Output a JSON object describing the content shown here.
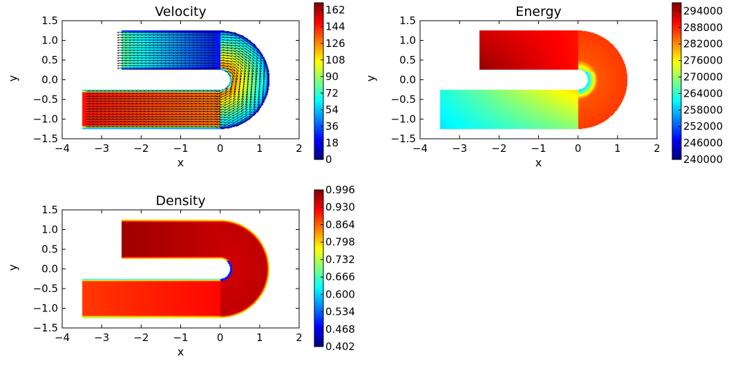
{
  "colors": {
    "jet": [
      "#00007f",
      "#0000ff",
      "#007fff",
      "#00ffff",
      "#7fff7f",
      "#ffff00",
      "#ff7f00",
      "#ff0000",
      "#7f0000"
    ],
    "arrow": "#111111"
  },
  "chart_data": [
    {
      "type": "heatmap",
      "title": "Velocity",
      "xlabel": "x",
      "ylabel": "y",
      "xlim": [
        -4,
        2
      ],
      "ylim": [
        -1.5,
        1.5
      ],
      "xticks": [
        -4,
        -3,
        -2,
        -1,
        0,
        1,
        2
      ],
      "yticks": [
        -1.5,
        -1.0,
        -0.5,
        0.0,
        0.5,
        1.0,
        1.5
      ],
      "xtick_labels": [
        "−4",
        "−3",
        "−2",
        "−1",
        "0",
        "1",
        "2"
      ],
      "ytick_labels": [
        "−1.5",
        "−1.0",
        "−0.5",
        "0.0",
        "0.5",
        "1.0",
        "1.5"
      ],
      "grid": false,
      "colorbar": {
        "min": 0,
        "max": 170,
        "ticks": [
          0,
          18,
          36,
          54,
          72,
          90,
          108,
          126,
          144,
          162
        ],
        "labels": [
          "0",
          "18",
          "36",
          "54",
          "72",
          "90",
          "108",
          "126",
          "144",
          "162"
        ]
      },
      "domain": {
        "inner_radius": 0.25,
        "outer_radius": 1.25,
        "upper_x_start": -2.5,
        "lower_x_start": -3.5
      },
      "quiver": true
    },
    {
      "type": "heatmap",
      "title": "Energy",
      "xlabel": "x",
      "ylabel": "y",
      "xlim": [
        -4,
        2
      ],
      "ylim": [
        -1.5,
        1.5
      ],
      "xticks": [
        -4,
        -3,
        -2,
        -1,
        0,
        1,
        2
      ],
      "yticks": [
        -1.5,
        -1.0,
        -0.5,
        0.0,
        0.5,
        1.0,
        1.5
      ],
      "xtick_labels": [
        "−4",
        "−3",
        "−2",
        "−1",
        "0",
        "1",
        "2"
      ],
      "ytick_labels": [
        "−1.5",
        "−1.0",
        "−0.5",
        "0.0",
        "0.5",
        "1.0",
        "1.5"
      ],
      "grid": false,
      "colorbar": {
        "min": 240000,
        "max": 297000,
        "ticks": [
          240000,
          246000,
          252000,
          258000,
          264000,
          270000,
          276000,
          282000,
          288000,
          294000
        ],
        "labels": [
          "240000",
          "246000",
          "252000",
          "258000",
          "264000",
          "270000",
          "276000",
          "282000",
          "288000",
          "294000"
        ]
      },
      "domain": {
        "inner_radius": 0.25,
        "outer_radius": 1.25,
        "upper_x_start": -2.5,
        "lower_x_start": -3.5
      },
      "quiver": false
    },
    {
      "type": "heatmap",
      "title": "Density",
      "xlabel": "x",
      "ylabel": "y",
      "xlim": [
        -4,
        2
      ],
      "ylim": [
        -1.5,
        1.5
      ],
      "xticks": [
        -4,
        -3,
        -2,
        -1,
        0,
        1,
        2
      ],
      "yticks": [
        -1.5,
        -1.0,
        -0.5,
        0.0,
        0.5,
        1.0,
        1.5
      ],
      "xtick_labels": [
        "−4",
        "−3",
        "−2",
        "−1",
        "0",
        "1",
        "2"
      ],
      "ytick_labels": [
        "−1.5",
        "−1.0",
        "−0.5",
        "0.0",
        "0.5",
        "1.0",
        "1.5"
      ],
      "grid": false,
      "colorbar": {
        "min": 0.402,
        "max": 0.996,
        "ticks": [
          0.402,
          0.468,
          0.534,
          0.6,
          0.666,
          0.732,
          0.798,
          0.864,
          0.93,
          0.996
        ],
        "labels": [
          "0.402",
          "0.468",
          "0.534",
          "0.600",
          "0.666",
          "0.732",
          "0.798",
          "0.864",
          "0.930",
          "0.996"
        ]
      },
      "domain": {
        "inner_radius": 0.25,
        "outer_radius": 1.25,
        "upper_x_start": -2.5,
        "lower_x_start": -3.5
      },
      "quiver": false
    }
  ]
}
